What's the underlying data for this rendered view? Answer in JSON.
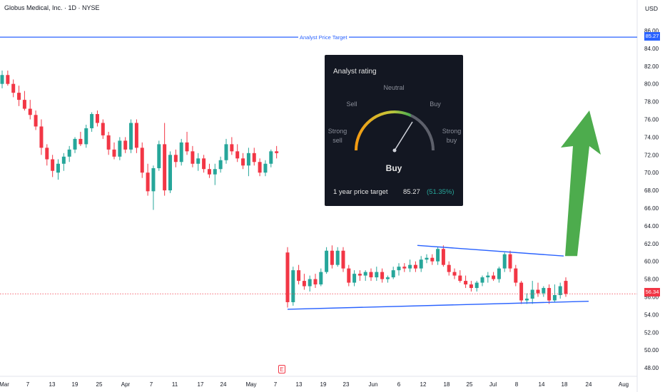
{
  "header": {
    "title": "Globus Medical, Inc. · 1D · NYSE",
    "currency": "USD"
  },
  "price_target_line": {
    "label": "Analyst Price Target",
    "value": 85.27,
    "color": "#2962ff"
  },
  "last_price": {
    "value": 56.34,
    "color": "#f23645"
  },
  "earnings_marker": "E",
  "analyst_card": {
    "title": "Analyst rating",
    "gauge_labels": {
      "strong_sell": "Strong sell",
      "sell": "Sell",
      "neutral": "Neutral",
      "buy": "Buy",
      "strong_buy": "Strong buy"
    },
    "rating": "Buy",
    "target_label": "1 year price target",
    "target_value": "85.27",
    "target_pct": "(51.35%)"
  },
  "colors": {
    "up": "#26a69a",
    "down": "#f23645",
    "trend": "#2962ff",
    "arrow": "#43a843"
  },
  "chart_data": {
    "type": "candlestick",
    "title": "Globus Medical, Inc. · 1D · NYSE",
    "x_ticks": [
      "Mar",
      "7",
      "13",
      "19",
      "25",
      "Apr",
      "7",
      "11",
      "17",
      "24",
      "May",
      "7",
      "13",
      "19",
      "23",
      "Jun",
      "6",
      "12",
      "18",
      "25",
      "Jul",
      "8",
      "14",
      "18",
      "24",
      "Aug"
    ],
    "y_ticks": [
      "86.00",
      "84.00",
      "82.00",
      "80.00",
      "78.00",
      "76.00",
      "74.00",
      "72.00",
      "70.00",
      "68.00",
      "66.00",
      "64.00",
      "62.00",
      "60.00",
      "58.00",
      "56.00",
      "54.00",
      "52.00",
      "50.00",
      "48.00"
    ],
    "ylim": [
      47,
      87
    ],
    "candles_before_gap": [
      [
        80,
        81.5,
        79.5,
        81
      ],
      [
        81,
        81.5,
        79.8,
        80
      ],
      [
        80,
        80.5,
        78.5,
        79
      ],
      [
        79,
        79.8,
        77.5,
        78.2
      ],
      [
        78.2,
        79.2,
        77,
        77.2
      ],
      [
        77.2,
        78.2,
        76,
        76.5
      ],
      [
        76.5,
        77,
        74.8,
        75.2
      ],
      [
        75.2,
        76,
        72,
        72.8
      ],
      [
        72.8,
        73.2,
        70.8,
        71.5
      ],
      [
        71.5,
        72,
        69.5,
        70.2
      ],
      [
        70,
        71.5,
        69.2,
        71
      ],
      [
        71,
        72.2,
        70.2,
        71.8
      ],
      [
        71.8,
        73,
        71.2,
        72.6
      ],
      [
        72.6,
        74,
        72.2,
        73.8
      ],
      [
        73.8,
        74.6,
        73,
        73.2
      ],
      [
        73.2,
        75.4,
        72.8,
        75
      ],
      [
        75,
        76.8,
        74.6,
        76.6
      ],
      [
        76.6,
        77,
        75.2,
        75.6
      ],
      [
        75.6,
        76,
        73.8,
        74.2
      ],
      [
        74.2,
        74.6,
        72,
        72.6
      ],
      [
        72.6,
        73.4,
        71.5,
        71.8
      ],
      [
        71.8,
        74,
        71.4,
        73.6
      ],
      [
        73.6,
        74,
        72.2,
        72.6
      ],
      [
        72.6,
        76,
        72.2,
        75.6
      ],
      [
        75.6,
        76,
        72.2,
        72.8
      ],
      [
        72.8,
        73.4,
        69.4,
        70
      ],
      [
        70,
        71,
        67.4,
        67.9
      ],
      [
        67.9,
        70.8,
        65.8,
        70.5
      ],
      [
        70.5,
        73.6,
        70.2,
        73.2
      ],
      [
        73.2,
        75.6,
        67.4,
        68
      ],
      [
        68,
        72.4,
        67.7,
        72
      ],
      [
        72,
        72.6,
        70.6,
        71.2
      ],
      [
        71.2,
        73.8,
        70.8,
        73.4
      ],
      [
        73.4,
        74.6,
        72,
        72.4
      ],
      [
        72.4,
        73,
        70.6,
        71
      ],
      [
        71,
        72.2,
        70.2,
        71.6
      ],
      [
        71.6,
        72,
        70,
        70.4
      ],
      [
        70.4,
        71,
        69.4,
        69.8
      ],
      [
        69.8,
        71,
        68.6,
        70.4
      ],
      [
        70.4,
        71.8,
        70,
        71.4
      ],
      [
        71.4,
        73.8,
        71,
        73.2
      ],
      [
        73.2,
        74,
        72,
        72.4
      ],
      [
        72.4,
        73.2,
        71.2,
        71.6
      ],
      [
        71.6,
        72.2,
        70.4,
        70.8
      ],
      [
        70.8,
        72.8,
        69.6,
        72.2
      ],
      [
        72.2,
        72.8,
        70.8,
        71.2
      ],
      [
        71.2,
        71.6,
        69.6,
        70
      ],
      [
        70,
        71.4,
        69.6,
        71
      ],
      [
        71,
        72.6,
        70.6,
        72.4
      ],
      [
        72.4,
        73,
        71.6,
        72.2
      ]
    ],
    "candles_after_gap": [
      [
        61,
        61.6,
        54.8,
        55.4
      ],
      [
        55.4,
        59.4,
        55,
        59
      ],
      [
        59,
        59.6,
        57.4,
        57.8
      ],
      [
        57.8,
        58.6,
        56.8,
        57.2
      ],
      [
        57.2,
        58.4,
        56.6,
        58
      ],
      [
        58,
        58.6,
        57,
        57.4
      ],
      [
        57.4,
        59.2,
        57.2,
        58.8
      ],
      [
        58.8,
        61.6,
        58.6,
        61.2
      ],
      [
        61.2,
        61.8,
        59.2,
        59.6
      ],
      [
        59.6,
        61.6,
        59.4,
        61.2
      ],
      [
        61.2,
        61.6,
        58.8,
        59.2
      ],
      [
        59.2,
        59.6,
        57.2,
        57.6
      ],
      [
        57.6,
        59,
        57.2,
        58.6
      ],
      [
        58.6,
        59,
        57.8,
        58.4
      ],
      [
        58.4,
        59,
        57.8,
        58.8
      ],
      [
        58.8,
        59.2,
        57.8,
        58.2
      ],
      [
        58.2,
        59.4,
        57.8,
        58.8
      ],
      [
        58.8,
        59.2,
        57.6,
        58
      ],
      [
        58,
        58.4,
        57.6,
        58.2
      ],
      [
        58.2,
        59.4,
        58,
        59
      ],
      [
        59,
        59.8,
        58.4,
        59.4
      ],
      [
        59.4,
        59.8,
        58.8,
        59.2
      ],
      [
        59.2,
        60.2,
        58.8,
        59.6
      ],
      [
        59.6,
        60,
        58.8,
        59.2
      ],
      [
        59.2,
        60.6,
        58.8,
        60.2
      ],
      [
        60.2,
        60.8,
        59.8,
        60.4
      ],
      [
        60.4,
        60.8,
        59.6,
        60
      ],
      [
        60,
        61.6,
        59.6,
        61.4
      ],
      [
        61.4,
        61.8,
        59.4,
        59.6
      ],
      [
        59.6,
        60,
        58.4,
        58.8
      ],
      [
        58.8,
        59.2,
        58,
        58.4
      ],
      [
        58.4,
        59,
        57.6,
        57.8
      ],
      [
        57.8,
        58.4,
        57,
        57.4
      ],
      [
        57.4,
        57.8,
        56.6,
        57
      ],
      [
        57,
        57.8,
        56.6,
        57.6
      ],
      [
        57.6,
        58.4,
        57.2,
        58.2
      ],
      [
        58.2,
        58.8,
        57.6,
        58.4
      ],
      [
        58.4,
        58.8,
        57.8,
        58
      ],
      [
        58,
        59.4,
        57.6,
        59.2
      ],
      [
        59.2,
        61,
        58.8,
        60.8
      ],
      [
        60.8,
        61.2,
        58.8,
        59.2
      ],
      [
        59.2,
        59.6,
        57.2,
        57.6
      ],
      [
        57.6,
        57.8,
        55.2,
        55.6
      ],
      [
        55.6,
        56.4,
        55.2,
        55.8
      ],
      [
        55.8,
        57.8,
        55.2,
        56.8
      ],
      [
        56.8,
        57.6,
        56,
        56.4
      ],
      [
        56.4,
        57.2,
        56,
        57
      ],
      [
        57,
        57.4,
        55.2,
        55.6
      ],
      [
        55.6,
        57.4,
        55.4,
        56.2
      ],
      [
        56.2,
        57.6,
        55.8,
        57.2
      ],
      [
        57.8,
        58.2,
        56,
        56.34
      ]
    ],
    "trendlines": [
      {
        "from": {
          "x": "May 13",
          "y": 54.6
        },
        "to": {
          "x": "Jul 24",
          "y": 55.5
        }
      },
      {
        "from": {
          "x": "Jun 12",
          "y": 61.8
        },
        "to": {
          "x": "Jul 18",
          "y": 60.6
        }
      }
    ],
    "projection_arrow": {
      "from_price": 60.6,
      "to_price": 77
    }
  }
}
